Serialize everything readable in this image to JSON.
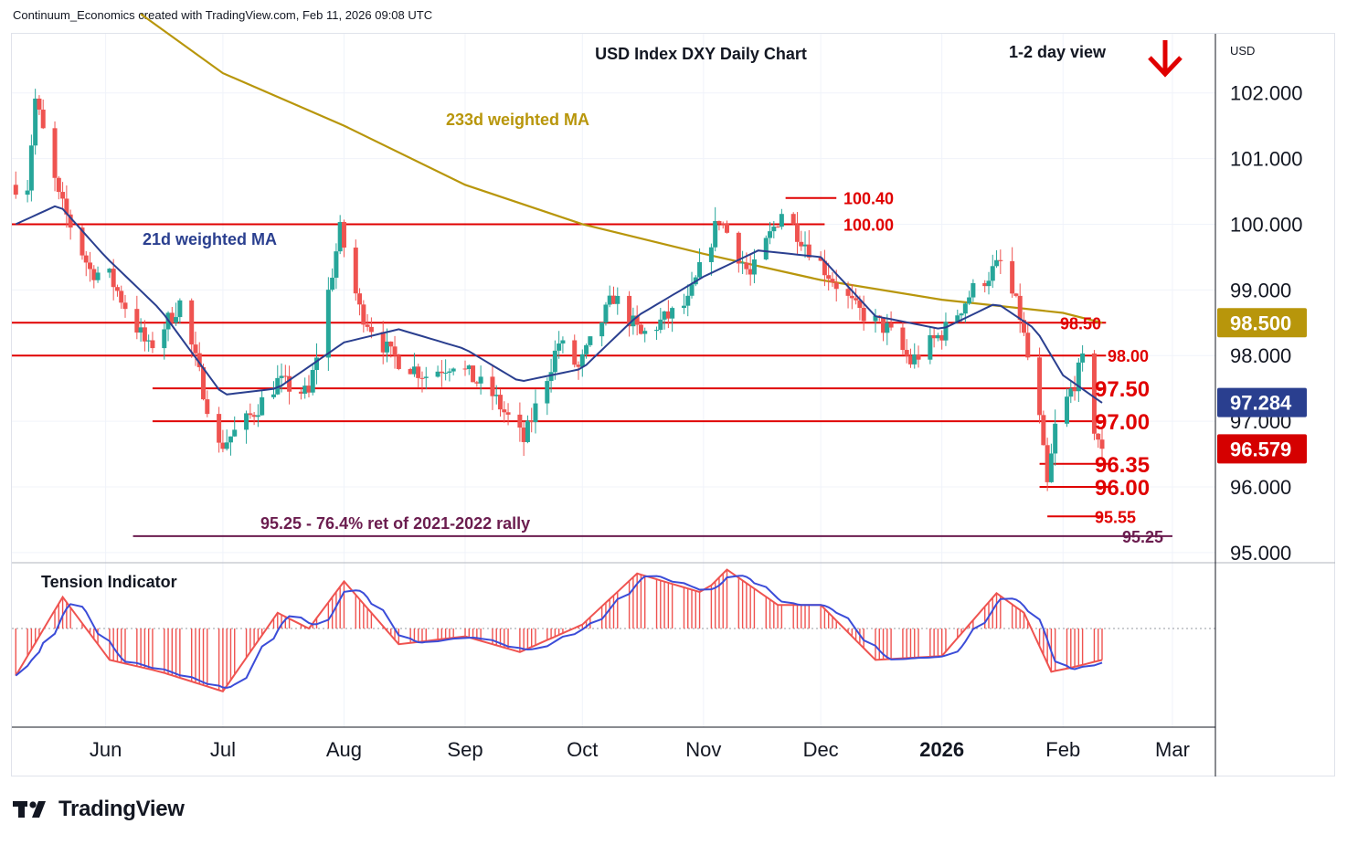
{
  "header": {
    "attribution": "Continuum_Economics created with TradingView.com, Feb 11, 2026 09:08 UTC"
  },
  "brand": {
    "name": "TradingView",
    "logo_icon": "tradingview-logo-icon"
  },
  "colors": {
    "up": "#26a69a",
    "down": "#ef5350",
    "level": "#e00000",
    "ma21": "#2a3f8f",
    "ma233": "#b8960b",
    "fib": "#6b1d4f",
    "tension": "#ef5350",
    "tension_signal": "#3b4cd8"
  },
  "chart_data": {
    "type": "candlestick",
    "title": "USD Index DXY Daily Chart",
    "view_label": "1-2 day view",
    "view_direction": "down",
    "view_icon": "red-down-arrow-icon",
    "currency": "USD",
    "y_axis": {
      "range": [
        94.9,
        102.9
      ],
      "ticks": [
        "102.000",
        "101.000",
        "100.000",
        "99.000",
        "98.000",
        "97.000",
        "96.000",
        "95.000"
      ]
    },
    "x_axis": {
      "ticks": [
        "Jun",
        "Jul",
        "Aug",
        "Sep",
        "Oct",
        "Nov",
        "Dec",
        "2026",
        "Feb",
        "Mar"
      ]
    },
    "price_badges": [
      {
        "value": "98.500",
        "bg": "#b8960b"
      },
      {
        "value": "97.284",
        "bg": "#2a3f8f"
      },
      {
        "value": "96.579",
        "bg": "#d50000"
      }
    ],
    "levels": [
      {
        "value": 100.4,
        "label": "100.40",
        "color": "#e00000"
      },
      {
        "value": 100.0,
        "label": "100.00",
        "color": "#e00000"
      },
      {
        "value": 98.5,
        "label": "98.50",
        "color": "#e00000"
      },
      {
        "value": 98.0,
        "label": "98.00",
        "color": "#e00000"
      },
      {
        "value": 97.5,
        "label": "97.50",
        "color": "#e00000"
      },
      {
        "value": 97.0,
        "label": "97.00",
        "color": "#e00000"
      },
      {
        "value": 96.35,
        "label": "96.35",
        "color": "#e00000"
      },
      {
        "value": 96.0,
        "label": "96.00",
        "color": "#e00000"
      },
      {
        "value": 95.55,
        "label": "95.55",
        "color": "#e00000"
      },
      {
        "value": 95.25,
        "label": "95.25",
        "color": "#6b1d4f"
      }
    ],
    "fib_label": "95.25 - 76.4% ret of 2021-2022 rally",
    "ma_labels": {
      "ma233": "233d weighted MA",
      "ma21": "21d weighted MA"
    },
    "anchors": [
      [
        "2025-05-12",
        100.6
      ],
      [
        "2025-05-14",
        101.9
      ],
      [
        "2025-05-20",
        100.4
      ],
      [
        "2025-05-28",
        99.3
      ],
      [
        "2025-06-02",
        99.2
      ],
      [
        "2025-06-12",
        98.1
      ],
      [
        "2025-06-20",
        98.8
      ],
      [
        "2025-06-30",
        96.6
      ],
      [
        "2025-07-07",
        97.0
      ],
      [
        "2025-07-15",
        97.6
      ],
      [
        "2025-07-23",
        97.4
      ],
      [
        "2025-07-31",
        99.9
      ],
      [
        "2025-08-05",
        98.7
      ],
      [
        "2025-08-13",
        98.0
      ],
      [
        "2025-08-22",
        97.7
      ],
      [
        "2025-08-29",
        97.9
      ],
      [
        "2025-09-08",
        97.4
      ],
      [
        "2025-09-16",
        96.7
      ],
      [
        "2025-09-25",
        98.2
      ],
      [
        "2025-09-30",
        97.8
      ],
      [
        "2025-10-09",
        98.9
      ],
      [
        "2025-10-16",
        98.3
      ],
      [
        "2025-10-28",
        98.8
      ],
      [
        "2025-11-05",
        100.1
      ],
      [
        "2025-11-13",
        99.2
      ],
      [
        "2025-11-21",
        100.2
      ],
      [
        "2025-12-01",
        99.4
      ],
      [
        "2025-12-10",
        98.7
      ],
      [
        "2025-12-18",
        98.4
      ],
      [
        "2025-12-24",
        97.9
      ],
      [
        "2026-01-02",
        98.4
      ],
      [
        "2026-01-09",
        99.0
      ],
      [
        "2026-01-16",
        99.4
      ],
      [
        "2026-01-21",
        98.6
      ],
      [
        "2026-01-26",
        97.0
      ],
      [
        "2026-01-28",
        96.0
      ],
      [
        "2026-01-30",
        96.9
      ],
      [
        "2026-02-04",
        97.6
      ],
      [
        "2026-02-06",
        97.9
      ],
      [
        "2026-02-09",
        96.9
      ],
      [
        "2026-02-11",
        96.58
      ]
    ],
    "ma21": [
      [
        "2025-05-09",
        100.0
      ],
      [
        "2025-05-20",
        100.3
      ],
      [
        "2025-06-01",
        99.5
      ],
      [
        "2025-06-15",
        98.7
      ],
      [
        "2025-07-01",
        97.4
      ],
      [
        "2025-07-15",
        97.5
      ],
      [
        "2025-08-01",
        98.2
      ],
      [
        "2025-08-15",
        98.4
      ],
      [
        "2025-09-01",
        98.1
      ],
      [
        "2025-09-15",
        97.6
      ],
      [
        "2025-10-01",
        97.8
      ],
      [
        "2025-10-15",
        98.6
      ],
      [
        "2025-11-01",
        99.2
      ],
      [
        "2025-11-15",
        99.6
      ],
      [
        "2025-12-01",
        99.5
      ],
      [
        "2025-12-15",
        98.6
      ],
      [
        "2026-01-01",
        98.4
      ],
      [
        "2026-01-15",
        98.8
      ],
      [
        "2026-01-25",
        98.4
      ],
      [
        "2026-02-01",
        97.7
      ],
      [
        "2026-02-11",
        97.28
      ]
    ],
    "ma233": [
      [
        "2025-06-10",
        103.2
      ],
      [
        "2025-07-01",
        102.3
      ],
      [
        "2025-08-01",
        101.5
      ],
      [
        "2025-09-01",
        100.6
      ],
      [
        "2025-10-01",
        100.0
      ],
      [
        "2025-11-01",
        99.55
      ],
      [
        "2025-12-01",
        99.15
      ],
      [
        "2026-01-01",
        98.85
      ],
      [
        "2026-02-01",
        98.65
      ],
      [
        "2026-02-11",
        98.5
      ]
    ],
    "tension_indicator": {
      "label": "Tension Indicator",
      "range": [
        -1,
        1
      ],
      "anchors": [
        [
          "2025-05-09",
          -0.6
        ],
        [
          "2025-05-21",
          0.4
        ],
        [
          "2025-06-02",
          -0.4
        ],
        [
          "2025-06-15",
          -0.55
        ],
        [
          "2025-07-01",
          -0.8
        ],
        [
          "2025-07-15",
          0.2
        ],
        [
          "2025-07-23",
          0.0
        ],
        [
          "2025-08-01",
          0.6
        ],
        [
          "2025-08-15",
          -0.2
        ],
        [
          "2025-09-01",
          -0.1
        ],
        [
          "2025-09-15",
          -0.3
        ],
        [
          "2025-10-01",
          0.05
        ],
        [
          "2025-10-15",
          0.7
        ],
        [
          "2025-11-01",
          0.45
        ],
        [
          "2025-11-07",
          0.75
        ],
        [
          "2025-11-20",
          0.3
        ],
        [
          "2025-12-01",
          0.3
        ],
        [
          "2025-12-15",
          -0.4
        ],
        [
          "2026-01-01",
          -0.35
        ],
        [
          "2026-01-15",
          0.45
        ],
        [
          "2026-01-22",
          0.2
        ],
        [
          "2026-01-29",
          -0.55
        ],
        [
          "2026-02-03",
          -0.5
        ],
        [
          "2026-02-11",
          -0.4
        ]
      ]
    }
  }
}
